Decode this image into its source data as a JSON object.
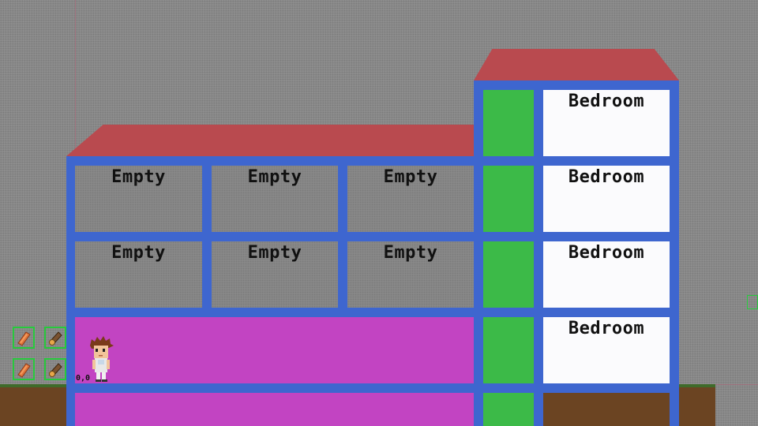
{
  "building": {
    "rooms_row1": [
      {
        "label": "Empty"
      },
      {
        "label": "Empty"
      },
      {
        "label": "Empty"
      }
    ],
    "rooms_row2": [
      {
        "label": "Empty"
      },
      {
        "label": "Empty"
      },
      {
        "label": "Empty"
      }
    ],
    "bedrooms": [
      {
        "label": "Bedroom"
      },
      {
        "label": "Bedroom"
      },
      {
        "label": "Bedroom"
      },
      {
        "label": "Bedroom"
      }
    ]
  },
  "inventory": {
    "slots": [
      {
        "icon": "brick-icon"
      },
      {
        "icon": "log-icon"
      },
      {
        "icon": "brick-icon"
      },
      {
        "icon": "log-icon"
      }
    ]
  },
  "player": {
    "position_label": "0,0"
  },
  "colors": {
    "roof": "#b94a4f",
    "frame": "#3e66cf",
    "ground_floor": "#c244c2",
    "elevator_shaft": "#3cba48",
    "bedroom": "#fbfbfd",
    "dirt": "#6b4422",
    "slot_border": "#27c93c"
  }
}
